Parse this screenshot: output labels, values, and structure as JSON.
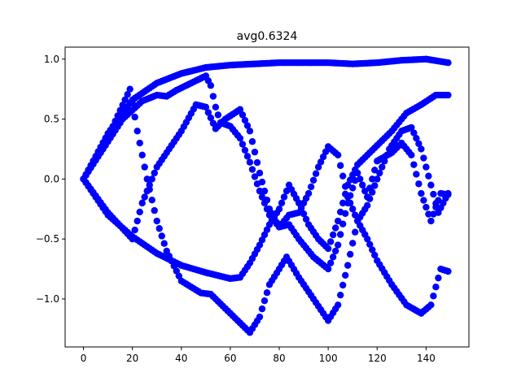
{
  "chart_data": {
    "type": "scatter",
    "title": "avg0.6324",
    "xlabel": "",
    "ylabel": "",
    "xlim": [
      -7.5,
      157.5
    ],
    "ylim": [
      -1.4,
      1.1
    ],
    "xticks": [
      0,
      20,
      40,
      60,
      80,
      100,
      120,
      140
    ],
    "yticks": [
      1.0,
      0.5,
      0.0,
      -0.5,
      -1.0
    ],
    "ytick_labels": [
      "1.0",
      "0.5",
      "0.0",
      "−0.5",
      "−1.0"
    ],
    "grid": false,
    "marker_color": "#0000ff",
    "series": [
      {
        "points": [
          [
            0,
            0.0
          ],
          [
            10,
            0.38
          ],
          [
            20,
            0.66
          ],
          [
            30,
            0.8
          ],
          [
            40,
            0.88
          ],
          [
            50,
            0.93
          ],
          [
            60,
            0.95
          ],
          [
            70,
            0.96
          ],
          [
            80,
            0.97
          ],
          [
            90,
            0.97
          ],
          [
            100,
            0.97
          ],
          [
            110,
            0.96
          ],
          [
            120,
            0.97
          ],
          [
            130,
            0.99
          ],
          [
            140,
            1.0
          ],
          [
            149,
            0.97
          ]
        ]
      },
      {
        "points": [
          [
            0,
            0.0
          ],
          [
            10,
            0.35
          ],
          [
            19,
            0.75
          ],
          [
            22,
            0.4
          ],
          [
            26,
            0.0
          ],
          [
            30,
            -0.35
          ],
          [
            34,
            -0.6
          ],
          [
            40,
            -0.85
          ],
          [
            48,
            -0.95
          ],
          [
            52,
            -0.96
          ],
          [
            60,
            -1.12
          ],
          [
            68,
            -1.28
          ],
          [
            72,
            -1.15
          ],
          [
            76,
            -0.88
          ],
          [
            80,
            -0.75
          ],
          [
            83,
            -0.65
          ],
          [
            88,
            -0.82
          ],
          [
            94,
            -1.0
          ],
          [
            100,
            -1.18
          ],
          [
            104,
            -1.05
          ],
          [
            108,
            -0.72
          ],
          [
            112,
            -0.35
          ],
          [
            116,
            -0.22
          ],
          [
            120,
            0.0
          ],
          [
            125,
            0.25
          ],
          [
            130,
            0.4
          ],
          [
            134,
            0.43
          ],
          [
            138,
            0.25
          ],
          [
            142,
            -0.05
          ],
          [
            145,
            -0.28
          ],
          [
            149,
            -0.12
          ]
        ]
      },
      {
        "points": [
          [
            0,
            0.0
          ],
          [
            10,
            -0.28
          ],
          [
            20,
            -0.5
          ],
          [
            24,
            -0.2
          ],
          [
            30,
            0.1
          ],
          [
            40,
            0.4
          ],
          [
            46,
            0.62
          ],
          [
            50,
            0.6
          ],
          [
            54,
            0.42
          ],
          [
            58,
            0.5
          ],
          [
            64,
            0.58
          ],
          [
            68,
            0.4
          ],
          [
            72,
            0.05
          ],
          [
            76,
            -0.25
          ],
          [
            80,
            -0.4
          ],
          [
            84,
            -0.38
          ],
          [
            88,
            -0.5
          ],
          [
            94,
            -0.65
          ],
          [
            100,
            -0.75
          ],
          [
            104,
            -0.55
          ],
          [
            108,
            -0.2
          ],
          [
            112,
            0.05
          ],
          [
            116,
            -0.15
          ],
          [
            120,
            0.15
          ],
          [
            126,
            0.22
          ],
          [
            130,
            0.3
          ],
          [
            134,
            0.2
          ],
          [
            138,
            -0.12
          ],
          [
            142,
            -0.35
          ],
          [
            146,
            -0.12
          ],
          [
            149,
            -0.13
          ]
        ]
      },
      {
        "points": [
          [
            0,
            0.0
          ],
          [
            10,
            -0.3
          ],
          [
            20,
            -0.48
          ],
          [
            30,
            -0.62
          ],
          [
            40,
            -0.72
          ],
          [
            50,
            -0.78
          ],
          [
            60,
            -0.83
          ],
          [
            64,
            -0.82
          ],
          [
            68,
            -0.7
          ],
          [
            72,
            -0.55
          ],
          [
            76,
            -0.38
          ],
          [
            80,
            -0.25
          ],
          [
            84,
            -0.05
          ],
          [
            88,
            -0.2
          ],
          [
            92,
            -0.38
          ],
          [
            96,
            -0.5
          ],
          [
            100,
            -0.58
          ],
          [
            104,
            -0.35
          ],
          [
            108,
            -0.05
          ],
          [
            112,
            0.12
          ],
          [
            116,
            0.2
          ],
          [
            120,
            0.28
          ],
          [
            126,
            0.4
          ],
          [
            132,
            0.55
          ],
          [
            138,
            0.62
          ],
          [
            144,
            0.7
          ],
          [
            149,
            0.7
          ]
        ]
      },
      {
        "points": [
          [
            0,
            0.0
          ],
          [
            8,
            0.25
          ],
          [
            16,
            0.5
          ],
          [
            24,
            0.65
          ],
          [
            30,
            0.7
          ],
          [
            34,
            0.69
          ],
          [
            38,
            0.74
          ],
          [
            44,
            0.8
          ],
          [
            50,
            0.86
          ],
          [
            52,
            0.78
          ],
          [
            54,
            0.6
          ],
          [
            56,
            0.47
          ],
          [
            60,
            0.44
          ],
          [
            64,
            0.34
          ],
          [
            68,
            0.14
          ],
          [
            72,
            -0.1
          ],
          [
            76,
            -0.3
          ],
          [
            80,
            -0.4
          ],
          [
            84,
            -0.3
          ],
          [
            88,
            -0.28
          ],
          [
            92,
            -0.12
          ],
          [
            96,
            0.1
          ],
          [
            100,
            0.27
          ],
          [
            104,
            0.2
          ],
          [
            108,
            -0.15
          ],
          [
            112,
            -0.35
          ],
          [
            116,
            -0.5
          ],
          [
            120,
            -0.68
          ],
          [
            126,
            -0.88
          ],
          [
            132,
            -1.05
          ],
          [
            138,
            -1.12
          ],
          [
            142,
            -1.05
          ],
          [
            146,
            -0.75
          ],
          [
            149,
            -0.77
          ]
        ]
      }
    ]
  }
}
